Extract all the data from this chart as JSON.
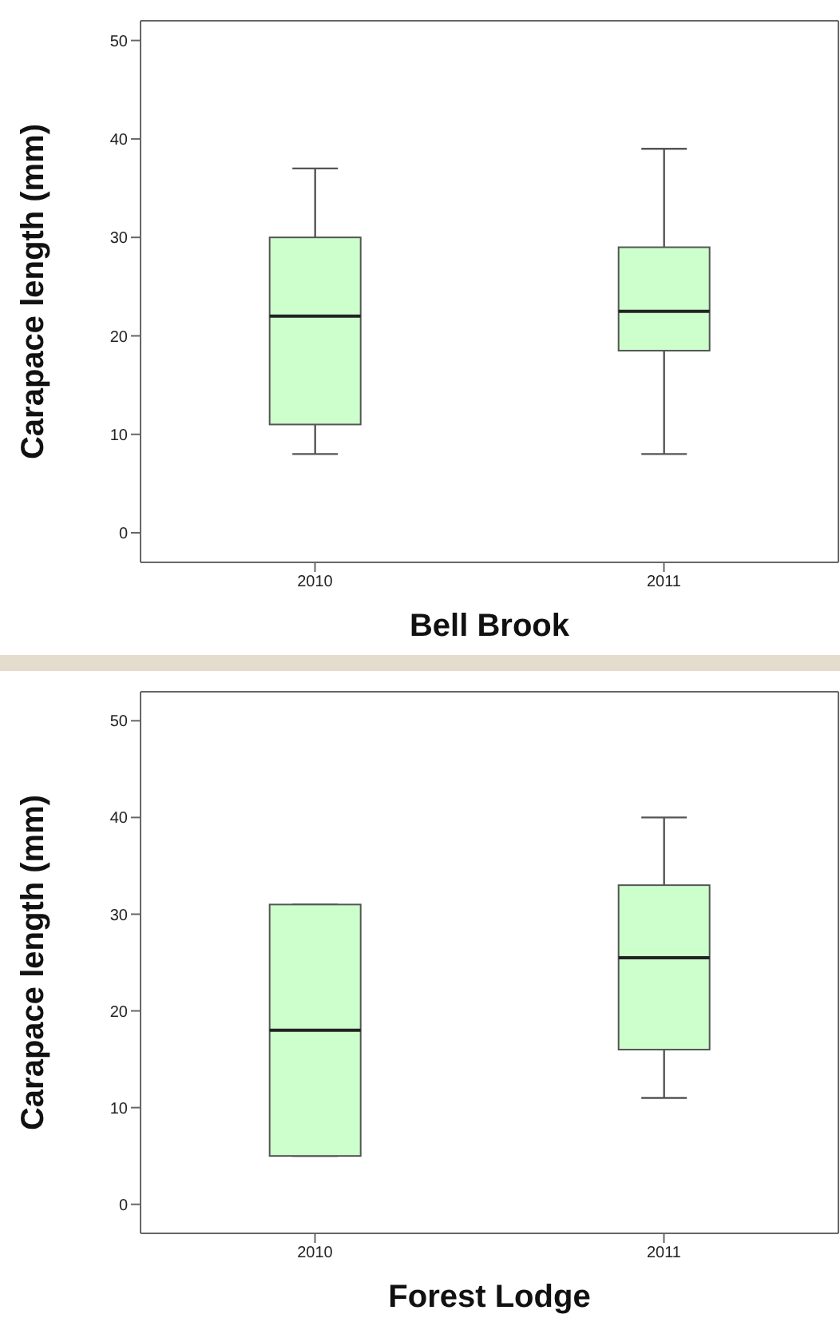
{
  "chart_data": [
    {
      "type": "box",
      "xlabel": "Bell Brook",
      "ylabel": "Carapace length (mm)",
      "categories": [
        "2010",
        "2011"
      ],
      "ylim": [
        -3,
        52
      ],
      "yticks": [
        0,
        10,
        20,
        30,
        40,
        50
      ],
      "series": [
        {
          "color": "#ccffcc",
          "boxes": [
            {
              "low": 8,
              "q1": 11,
              "median": 22,
              "q3": 30,
              "high": 37
            },
            {
              "low": 8,
              "q1": 18.5,
              "median": 22.5,
              "q3": 29,
              "high": 39
            }
          ]
        }
      ]
    },
    {
      "type": "box",
      "xlabel": "Forest Lodge",
      "ylabel": "Carapace length (mm)",
      "categories": [
        "2010",
        "2011"
      ],
      "ylim": [
        -3,
        53
      ],
      "yticks": [
        0,
        10,
        20,
        30,
        40,
        50
      ],
      "series": [
        {
          "color": "#ccffcc",
          "boxes": [
            {
              "low": 5,
              "q1": 5,
              "median": 18,
              "q3": 31,
              "high": 31
            },
            {
              "low": 11,
              "q1": 16,
              "median": 25.5,
              "q3": 33,
              "high": 40
            }
          ]
        }
      ]
    }
  ]
}
